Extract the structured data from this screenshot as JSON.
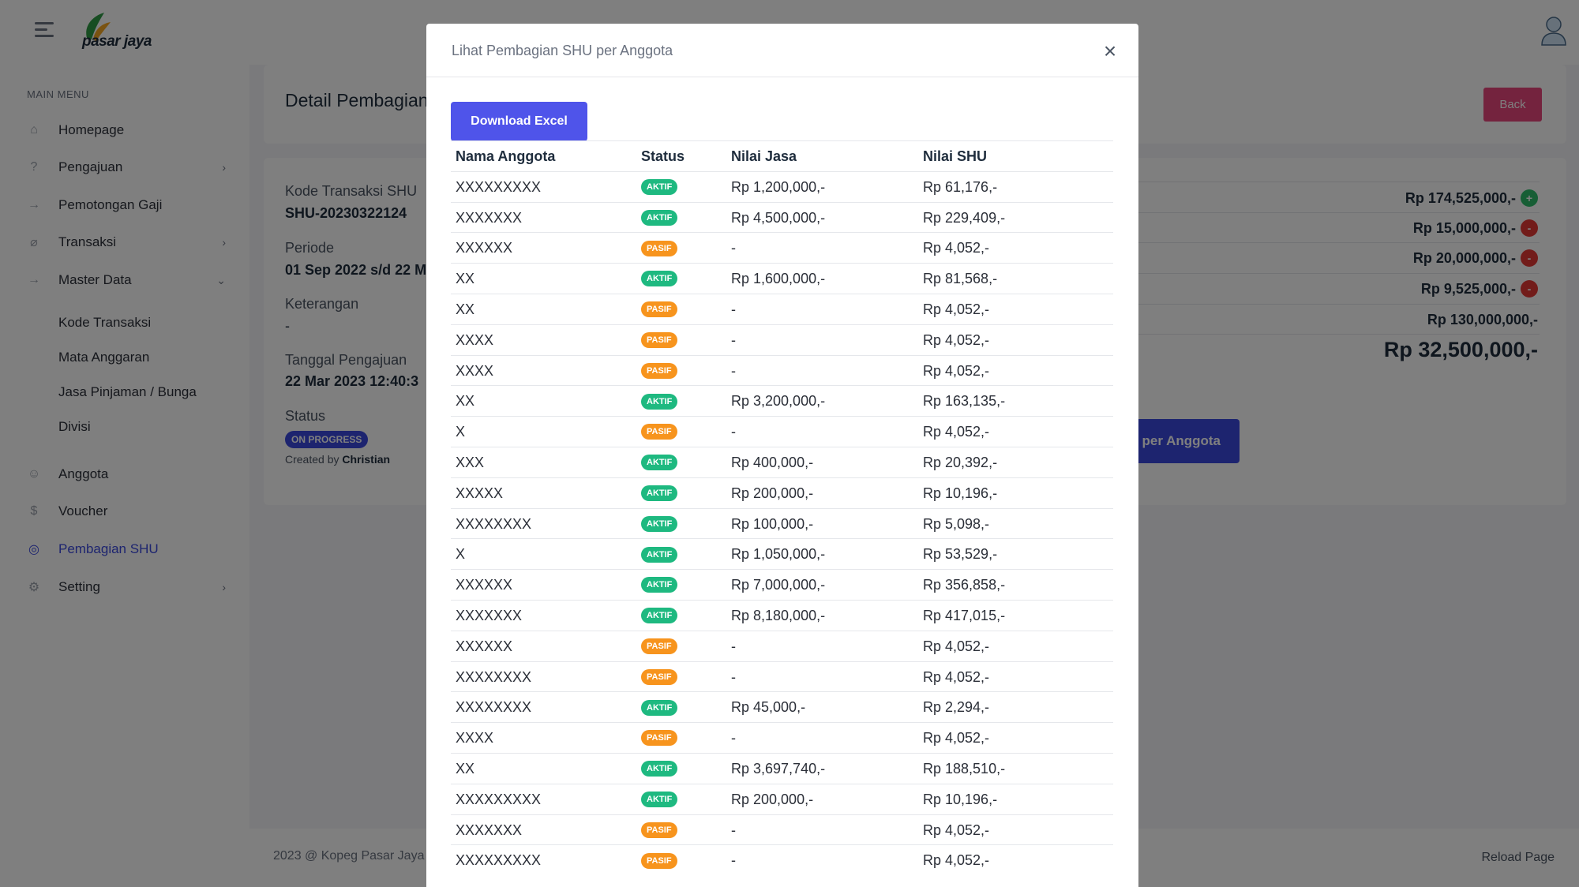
{
  "header": {
    "logo_text": "pasar jaya"
  },
  "sidebar": {
    "menu_title": "MAIN MENU",
    "items": [
      {
        "label": "Homepage",
        "icon": "home-icon"
      },
      {
        "label": "Pengajuan",
        "icon": "help-circle-icon"
      },
      {
        "label": "Pemotongan Gaji",
        "icon": "arrow-right-icon"
      },
      {
        "label": "Transaksi",
        "icon": "paperclip-icon"
      },
      {
        "label": "Master Data",
        "icon": "arrow-right-icon"
      },
      {
        "label": "Anggota",
        "icon": "user-icon"
      },
      {
        "label": "Voucher",
        "icon": "dollar-icon"
      },
      {
        "label": "Pembagian SHU",
        "icon": "target-icon"
      },
      {
        "label": "Setting",
        "icon": "gear-icon"
      }
    ],
    "submenu": [
      "Kode Transaksi",
      "Mata Anggaran",
      "Jasa Pinjaman / Bunga",
      "Divisi"
    ]
  },
  "page": {
    "title": "Detail Pembagian",
    "back_label": "Back",
    "kode_label": "Kode Transaksi SHU",
    "kode_value": "SHU-20230322124",
    "periode_label": "Periode",
    "periode_value": "01 Sep 2022 s/d 22 M",
    "keterangan_label": "Keterangan",
    "keterangan_value": "-",
    "tanggal_label": "Tanggal Pengajuan",
    "tanggal_value": "22 Mar 2023 12:40:3",
    "status_label": "Status",
    "status_badge": "ON PROGRESS",
    "created_by_prefix": "Created by",
    "created_by_name": "Christian",
    "summary": [
      "Rp 174,525,000,-",
      "Rp 15,000,000,-",
      "Rp 20,000,000,-",
      "Rp 9,525,000,-",
      "Rp 130,000,000,-"
    ],
    "summary_total": "Rp 32,500,000,-",
    "per_anggota_label": "per Anggota"
  },
  "footer": {
    "copyright": "2023 @ Kopeg Pasar Jaya",
    "reload": "Reload Page"
  },
  "modal": {
    "title": "Lihat Pembagian SHU per Anggota",
    "download_label": "Download Excel",
    "columns": [
      "Nama Anggota",
      "Status",
      "Nilai Jasa",
      "Nilai SHU"
    ],
    "rows": [
      [
        "XXXXXXXXX",
        "AKTIF",
        "Rp 1,200,000,-",
        "Rp 61,176,-"
      ],
      [
        "XXXXXXX",
        "AKTIF",
        "Rp 4,500,000,-",
        "Rp 229,409,-"
      ],
      [
        "XXXXXX",
        "PASIF",
        "-",
        "Rp 4,052,-"
      ],
      [
        "XX",
        "AKTIF",
        "Rp 1,600,000,-",
        "Rp 81,568,-"
      ],
      [
        "XX",
        "PASIF",
        "-",
        "Rp 4,052,-"
      ],
      [
        "XXXX",
        "PASIF",
        "-",
        "Rp 4,052,-"
      ],
      [
        "XXXX",
        "PASIF",
        "-",
        "Rp 4,052,-"
      ],
      [
        "XX",
        "AKTIF",
        "Rp 3,200,000,-",
        "Rp 163,135,-"
      ],
      [
        "X",
        "PASIF",
        "-",
        "Rp 4,052,-"
      ],
      [
        "XXX",
        "AKTIF",
        "Rp 400,000,-",
        "Rp 20,392,-"
      ],
      [
        "XXXXX",
        "AKTIF",
        "Rp 200,000,-",
        "Rp 10,196,-"
      ],
      [
        "XXXXXXXX",
        "AKTIF",
        "Rp 100,000,-",
        "Rp 5,098,-"
      ],
      [
        "X",
        "AKTIF",
        "Rp 1,050,000,-",
        "Rp 53,529,-"
      ],
      [
        "XXXXXX",
        "AKTIF",
        "Rp 7,000,000,-",
        "Rp 356,858,-"
      ],
      [
        "XXXXXXX",
        "AKTIF",
        "Rp 8,180,000,-",
        "Rp 417,015,-"
      ],
      [
        "XXXXXX",
        "PASIF",
        "-",
        "Rp 4,052,-"
      ],
      [
        "XXXXXXXX",
        "PASIF",
        "-",
        "Rp 4,052,-"
      ],
      [
        "XXXXXXXX",
        "AKTIF",
        "Rp 45,000,-",
        "Rp 2,294,-"
      ],
      [
        "XXXX",
        "PASIF",
        "-",
        "Rp 4,052,-"
      ],
      [
        "XX",
        "AKTIF",
        "Rp 3,697,740,-",
        "Rp 188,510,-"
      ],
      [
        "XXXXXXXXX",
        "AKTIF",
        "Rp 200,000,-",
        "Rp 10,196,-"
      ],
      [
        "XXXXXXX",
        "PASIF",
        "-",
        "Rp 4,052,-"
      ],
      [
        "XXXXXXXXX",
        "PASIF",
        "-",
        "Rp 4,052,-"
      ]
    ]
  },
  "colors": {
    "primary": "#3b49df",
    "aktif": "#1eb980",
    "pasif": "#f7941d",
    "back": "#e8467c"
  }
}
